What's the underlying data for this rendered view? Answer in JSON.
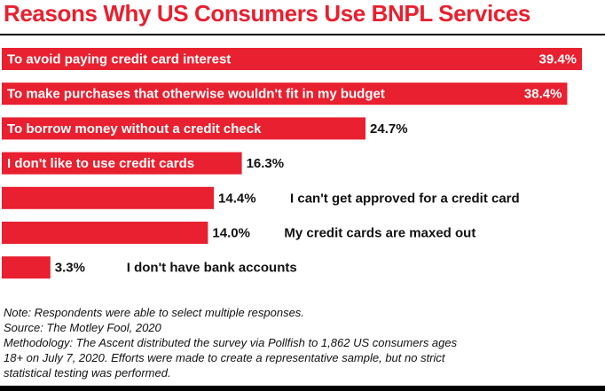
{
  "colors": {
    "bar": "#e8202f",
    "title": "#e8202f",
    "text_on_bar": "#ffffff",
    "text": "#111111",
    "rule": "#000000"
  },
  "chart_data": {
    "type": "bar",
    "orientation": "horizontal",
    "title": "Reasons Why US Consumers Use BNPL Services",
    "categories": [
      "To avoid paying credit card interest",
      "To make purchases that otherwise wouldn't fit in my budget",
      "To borrow money without a credit check",
      "I don't like to use credit cards",
      "I can't get approved for a credit card",
      "My credit cards are maxed out",
      "I don't have bank accounts"
    ],
    "values": [
      39.4,
      38.4,
      24.7,
      16.3,
      14.4,
      14.0,
      3.3
    ],
    "value_labels": [
      "39.4%",
      "38.4%",
      "24.7%",
      "16.3%",
      "14.4%",
      "14.0%",
      "3.3%"
    ],
    "label_placement": [
      "inside",
      "inside",
      "inside",
      "inside",
      "outside",
      "outside",
      "outside"
    ],
    "unit": "%",
    "xlim": [
      0,
      40
    ],
    "grid": false,
    "legend": "none"
  },
  "notes": {
    "note": "Note: Respondents were able to select multiple responses.",
    "source": "Source: The Motley Fool, 2020",
    "methodology_1": "Methodology: The Ascent distributed the survey via Pollfish to 1,862 US consumers ages",
    "methodology_2": "18+ on July 7, 2020. Efforts were made to create a representative sample, but no strict",
    "methodology_3": "statistical testing was performed."
  }
}
